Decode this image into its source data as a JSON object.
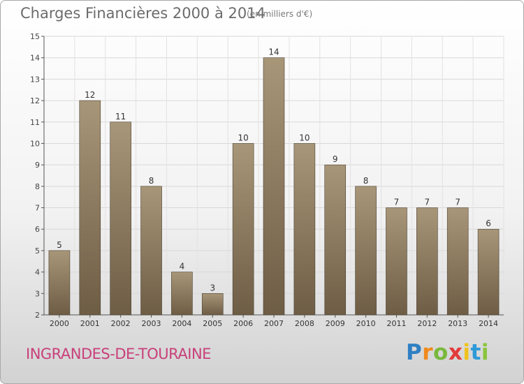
{
  "header": {
    "title": "Charges Financières 2000 à 2014",
    "subtitle": "(en milliers d'€)"
  },
  "footer": {
    "town": "INGRANDES-DE-TOURAINE",
    "logo_letters": [
      "P",
      "r",
      "o",
      "x",
      "i",
      "t",
      "i"
    ]
  },
  "chart_data": {
    "type": "bar",
    "title": "Charges Financières 2000 à 2014",
    "subtitle": "(en milliers d'€)",
    "categories": [
      "2000",
      "2001",
      "2002",
      "2003",
      "2004",
      "2005",
      "2006",
      "2007",
      "2008",
      "2009",
      "2010",
      "2011",
      "2012",
      "2013",
      "2014"
    ],
    "values": [
      5,
      12,
      11,
      8,
      4,
      3,
      10,
      14,
      10,
      9,
      8,
      7,
      7,
      7,
      6
    ],
    "ylim": [
      2,
      15
    ],
    "yticks": [
      2,
      3,
      4,
      5,
      6,
      7,
      8,
      9,
      10,
      11,
      12,
      13,
      14,
      15
    ],
    "grid": true,
    "bar_color_top": "#a89679",
    "bar_color_bottom": "#6e5d45",
    "legend": "none"
  }
}
